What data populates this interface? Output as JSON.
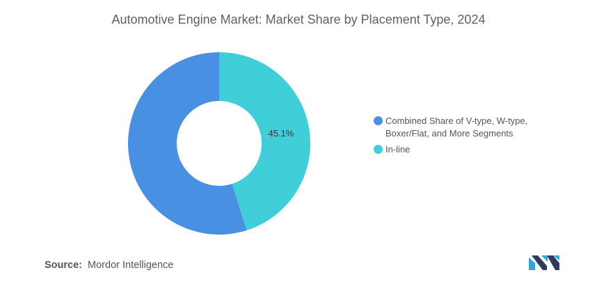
{
  "chart_data": {
    "type": "pie",
    "title": "Automotive Engine Market: Market Share by Placement Type, 2024",
    "donut": true,
    "legend_position": "right",
    "slices": [
      {
        "label": "In-line",
        "value": 45.1,
        "value_label": "45.1%",
        "color": "#40cfd9"
      },
      {
        "label": "Combined Share of V-type, W-type, Boxer/Flat, and More Segments",
        "value": 54.9,
        "value_label": "",
        "color": "#4a90e2"
      }
    ],
    "legend": [
      {
        "label": "Combined Share of V-type, W-type, Boxer/Flat, and More Segments",
        "color": "#4a90e2"
      },
      {
        "label": "In-line",
        "color": "#40cfd9"
      }
    ]
  },
  "source": {
    "label": "Source:",
    "text": "Mordor Intelligence"
  },
  "logo": {
    "colors": [
      "#2f3b5c",
      "#2fa8d5"
    ]
  }
}
